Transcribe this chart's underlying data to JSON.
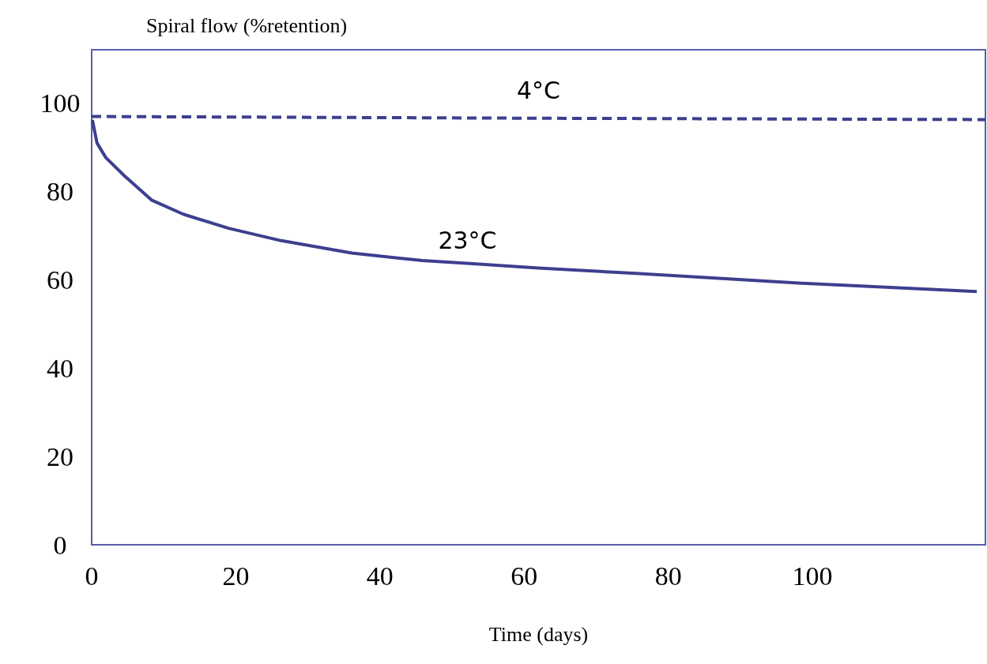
{
  "chart_data": {
    "type": "line",
    "ylabel": "Spiral flow (%retention)",
    "xlabel": "Time (days)",
    "xlim": [
      0,
      124
    ],
    "xticks": [
      0,
      20,
      40,
      60,
      80,
      100
    ],
    "ylim": [
      0,
      112
    ],
    "yticks": [
      0,
      20,
      40,
      60,
      80,
      100
    ],
    "grid": false,
    "marker": "none",
    "series": [
      {
        "name": "4°C",
        "color": "#3d3f8e",
        "line_style": "dashed",
        "x": [
          0,
          62,
          124
        ],
        "values": [
          96.9,
          96.5,
          96.2
        ]
      },
      {
        "name": "23°C",
        "color": "#3d3f8e",
        "line_style": "solid",
        "x": [
          0.1,
          0.74,
          1.96,
          4.4,
          8.3,
          12.7,
          19,
          26.3,
          36.1,
          45.9,
          52.9,
          62,
          75.5,
          98.1,
          122.8
        ],
        "values": [
          96.1,
          90.9,
          87.6,
          83.7,
          78,
          74.8,
          71.6,
          68.8,
          66,
          64.3,
          63.6,
          62.6,
          61.4,
          59.2,
          57.3
        ]
      }
    ]
  }
}
